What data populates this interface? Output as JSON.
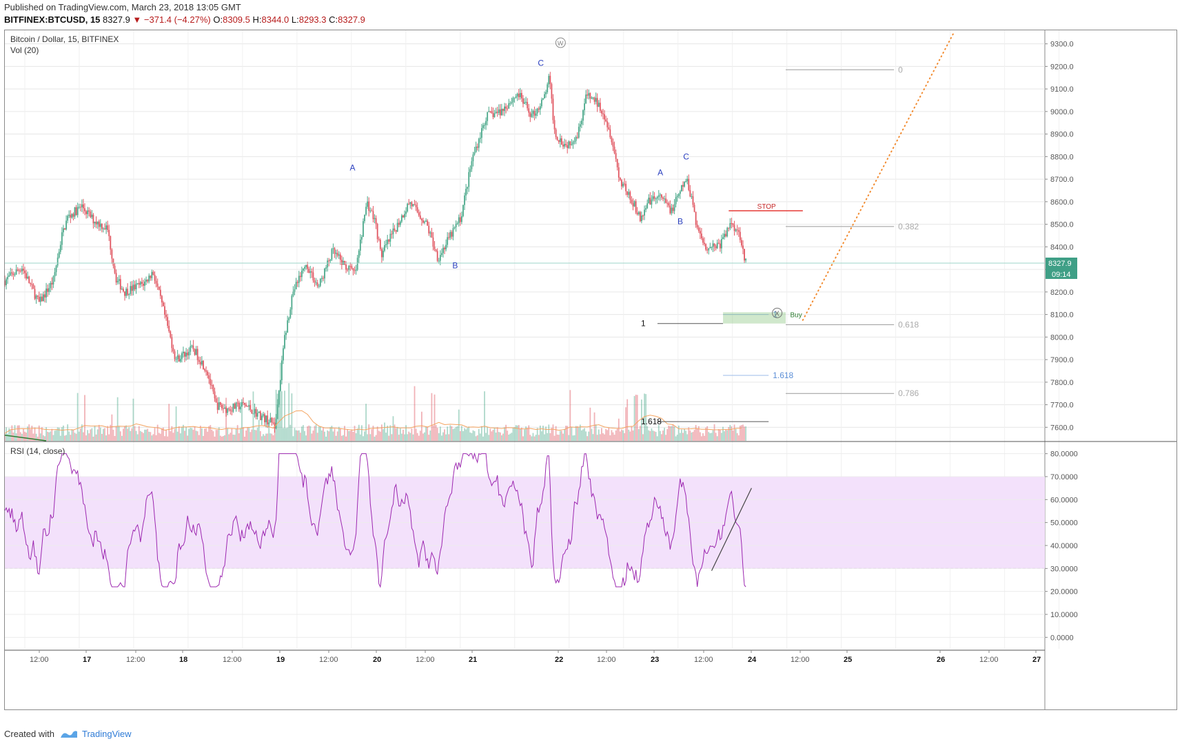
{
  "header": {
    "published": "Published on TradingView.com, March 23, 2018 13:05 GMT",
    "symbol": "BITFINEX:BTCUSD, 15",
    "last": "8327.9",
    "change": "▼ −371.4 (−4.27%)",
    "o_label": "O:",
    "o": "8309.5",
    "h_label": "H:",
    "h": "8344.0",
    "l_label": "L:",
    "l": "8293.3",
    "c_label": "C:",
    "c": "8327.9"
  },
  "footer": {
    "created": "Created with",
    "brand": "TradingView"
  },
  "colors": {
    "up": "#4aa88a",
    "down": "#e05560",
    "rsi": "#9c27b0",
    "rsi_band": "#f3e1fb",
    "grid": "#e6e6e6"
  },
  "chart_data": [
    {
      "type": "candlestick",
      "title": "Bitcoin / Dollar, 15, BITFINEX",
      "indicator_label": "Vol (20)",
      "ylim": [
        7540,
        9360
      ],
      "yticks": [
        7600,
        7700,
        7800,
        7900,
        8000,
        8100,
        8200,
        8300,
        8400,
        8500,
        8600,
        8700,
        8800,
        8900,
        9000,
        9100,
        9200,
        9300
      ],
      "ytick_labels": [
        "7600.0",
        "7700.0",
        "7800.0",
        "7900.0",
        "8000.0",
        "8100.0",
        "8200.0",
        "8300.0",
        "8400.0",
        "8500.0",
        "8600.0",
        "8700.0",
        "8800.0",
        "8900.0",
        "9000.0",
        "9100.0",
        "9200.0",
        "9300.0"
      ],
      "last_price_label": "8327.9",
      "countdown_label": "09:14",
      "xtick_labels": [
        "12:00",
        "17",
        "12:00",
        "18",
        "12:00",
        "19",
        "12:00",
        "20",
        "12:00",
        "21",
        "22",
        "12:00",
        "23",
        "12:00",
        "24",
        "12:00",
        "25",
        "26",
        "12:00",
        "27"
      ],
      "price_path": [
        {
          "t": 0.0,
          "p": 8250
        },
        {
          "t": 0.3,
          "p": 8310
        },
        {
          "t": 0.6,
          "p": 8150
        },
        {
          "t": 0.85,
          "p": 8250
        },
        {
          "t": 1.0,
          "p": 8450
        },
        {
          "t": 1.1,
          "p": 8530
        },
        {
          "t": 1.35,
          "p": 8580
        },
        {
          "t": 1.55,
          "p": 8520
        },
        {
          "t": 1.8,
          "p": 8480
        },
        {
          "t": 1.95,
          "p": 8260
        },
        {
          "t": 2.1,
          "p": 8200
        },
        {
          "t": 2.45,
          "p": 8240
        },
        {
          "t": 2.6,
          "p": 8290
        },
        {
          "t": 2.8,
          "p": 8100
        },
        {
          "t": 3.0,
          "p": 7900
        },
        {
          "t": 3.3,
          "p": 7950
        },
        {
          "t": 3.55,
          "p": 7850
        },
        {
          "t": 3.7,
          "p": 7700
        },
        {
          "t": 3.9,
          "p": 7680
        },
        {
          "t": 4.2,
          "p": 7700
        },
        {
          "t": 4.55,
          "p": 7640
        },
        {
          "t": 4.75,
          "p": 7610
        },
        {
          "t": 4.9,
          "p": 7980
        },
        {
          "t": 5.05,
          "p": 8200
        },
        {
          "t": 5.3,
          "p": 8320
        },
        {
          "t": 5.5,
          "p": 8220
        },
        {
          "t": 5.75,
          "p": 8380
        },
        {
          "t": 5.95,
          "p": 8320
        },
        {
          "t": 6.15,
          "p": 8280
        },
        {
          "t": 6.35,
          "p": 8600
        },
        {
          "t": 6.5,
          "p": 8510
        },
        {
          "t": 6.6,
          "p": 8360
        },
        {
          "t": 7.1,
          "p": 8600
        },
        {
          "t": 7.4,
          "p": 8500
        },
        {
          "t": 7.6,
          "p": 8350
        },
        {
          "t": 8.0,
          "p": 8530
        },
        {
          "t": 8.2,
          "p": 8790
        },
        {
          "t": 8.45,
          "p": 8980
        },
        {
          "t": 8.7,
          "p": 9000
        },
        {
          "t": 9.0,
          "p": 9080
        },
        {
          "t": 9.25,
          "p": 8980
        },
        {
          "t": 9.45,
          "p": 9050
        },
        {
          "t": 9.55,
          "p": 9150
        },
        {
          "t": 9.65,
          "p": 8900
        },
        {
          "t": 9.85,
          "p": 8850
        },
        {
          "t": 10.05,
          "p": 8900
        },
        {
          "t": 10.2,
          "p": 9070
        },
        {
          "t": 10.35,
          "p": 9050
        },
        {
          "t": 10.5,
          "p": 9000
        },
        {
          "t": 10.65,
          "p": 8880
        },
        {
          "t": 10.8,
          "p": 8680
        },
        {
          "t": 10.95,
          "p": 8640
        },
        {
          "t": 11.15,
          "p": 8520
        },
        {
          "t": 11.3,
          "p": 8600
        },
        {
          "t": 11.5,
          "p": 8620
        },
        {
          "t": 11.7,
          "p": 8560
        },
        {
          "t": 11.95,
          "p": 8700
        },
        {
          "t": 12.05,
          "p": 8620
        },
        {
          "t": 12.15,
          "p": 8480
        },
        {
          "t": 12.3,
          "p": 8400
        },
        {
          "t": 12.55,
          "p": 8410
        },
        {
          "t": 12.75,
          "p": 8510
        },
        {
          "t": 12.9,
          "p": 8450
        },
        {
          "t": 13.0,
          "p": 8328
        }
      ],
      "wave_labels": [
        {
          "text": "A",
          "t": 6.1,
          "p": 8738
        },
        {
          "text": "B",
          "t": 7.9,
          "p": 8305
        },
        {
          "text": "C",
          "t": 9.4,
          "p": 9202
        },
        {
          "text": "A",
          "t": 11.5,
          "p": 8717
        },
        {
          "text": "B",
          "t": 11.85,
          "p": 8500
        },
        {
          "text": "C",
          "t": 11.95,
          "p": 8788
        }
      ],
      "wave_marker_w": {
        "text": "W",
        "t": 9.75,
        "p": 9305
      },
      "fib_levels": [
        {
          "label": "0",
          "p": 9185,
          "t0": 13.7,
          "t1": 15.6
        },
        {
          "label": "0.382",
          "p": 8490,
          "t0": 13.7,
          "t1": 15.6
        },
        {
          "label": "0.618",
          "p": 8055,
          "t0": 13.7,
          "t1": 15.6
        },
        {
          "label": "0.786",
          "p": 7750,
          "t0": 13.7,
          "t1": 15.6
        }
      ],
      "ext_levels": [
        {
          "label": "1",
          "label_side": "left",
          "p": 8060,
          "t0": 11.45,
          "t1": 12.6,
          "color": "#333"
        },
        {
          "label": "1.618",
          "label_side": "left",
          "p": 7625,
          "t0": 11.45,
          "t1": 13.4,
          "color": "#333"
        },
        {
          "label": "1",
          "label_side": "right",
          "p": 8100,
          "t0": 12.6,
          "t1": 13.4,
          "color": "#5b8ed6"
        },
        {
          "label": "1.618",
          "label_side": "right",
          "p": 7830,
          "t0": 12.6,
          "t1": 13.4,
          "color": "#5b8ed6"
        }
      ],
      "stop": {
        "label": "STOP",
        "p": 8560,
        "t0": 12.7,
        "t1": 14.0
      },
      "buy": {
        "label": "Buy",
        "marker": "X",
        "p_top": 8110,
        "p_bottom": 8060,
        "t0": 12.6,
        "t1": 13.7
      },
      "projection": [
        {
          "t": 14.0,
          "p": 8075
        },
        {
          "t": 16.65,
          "p": 9350
        }
      ],
      "volume": {
        "max": 100
      }
    },
    {
      "type": "line",
      "title": "RSI (14, close)",
      "ylim": [
        -5,
        85
      ],
      "yticks": [
        0,
        10,
        20,
        30,
        40,
        50,
        60,
        70,
        80
      ],
      "ytick_labels": [
        "0.0000",
        "10.0000",
        "20.0000",
        "30.0000",
        "40.0000",
        "50.0000",
        "60.0000",
        "70.0000",
        "80.0000"
      ],
      "band": [
        30,
        70
      ],
      "trendline": [
        {
          "t": 12.4,
          "v": 29
        },
        {
          "t": 13.1,
          "v": 65
        }
      ]
    }
  ]
}
